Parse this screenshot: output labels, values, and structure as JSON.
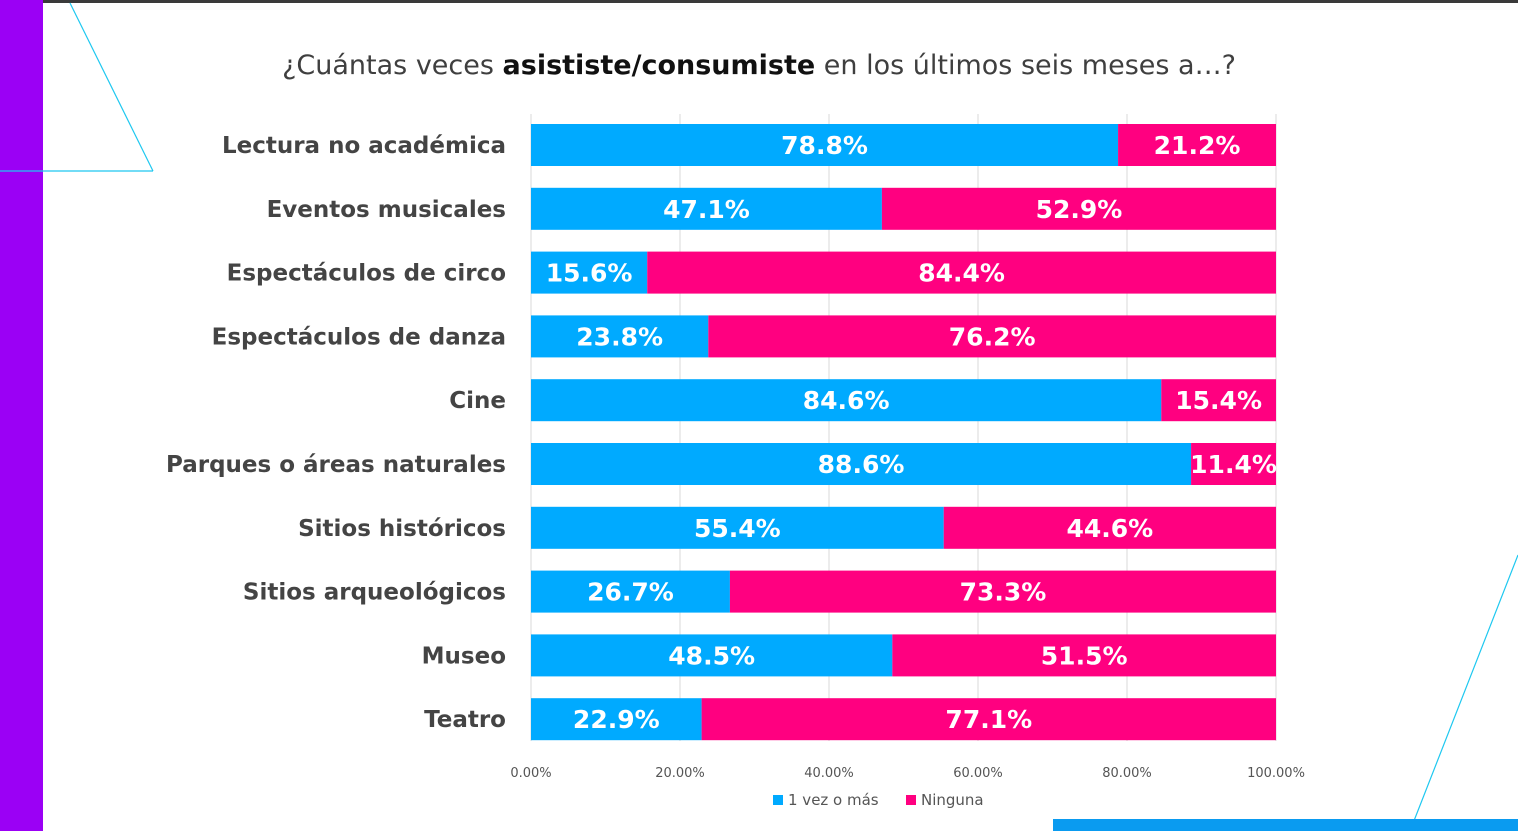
{
  "title": {
    "prefix": "¿Cuántas veces ",
    "bold": "asististe/consumiste",
    "suffix": " en los últimos seis meses a…?"
  },
  "colors": {
    "series1": "#00aaff",
    "series2": "#ff0080",
    "left_bar": "#9b00f5",
    "accent_line": "#1ec8f0",
    "bottom_bar": "#0a9bf0"
  },
  "chart_data": {
    "type": "bar",
    "orientation": "horizontal",
    "stacked": true,
    "categories": [
      "Lectura no académica",
      "Eventos musicales",
      "Espectáculos de circo",
      "Espectáculos de danza",
      "Cine",
      "Parques o áreas naturales",
      "Sitios históricos",
      "Sitios arqueológicos",
      "Museo",
      "Teatro"
    ],
    "series": [
      {
        "name": "1 vez o más",
        "values": [
          78.8,
          47.1,
          15.6,
          23.8,
          84.6,
          88.6,
          55.4,
          26.7,
          48.5,
          22.9
        ],
        "labels": [
          "78.8%",
          "47.1%",
          "15.6%",
          "23.8%",
          "84.6%",
          "88.6%",
          "55.4%",
          "26.7%",
          "48.5%",
          "22.9%"
        ]
      },
      {
        "name": "Ninguna",
        "values": [
          21.2,
          52.9,
          84.4,
          76.2,
          15.4,
          11.4,
          44.6,
          73.3,
          51.5,
          77.1
        ],
        "labels": [
          "21.2%",
          "52.9%",
          "84.4%",
          "76.2%",
          "15.4%",
          "11.4%",
          "44.6%",
          "73.3%",
          "51.5%",
          "77.1%"
        ]
      }
    ],
    "xlim": [
      0,
      100
    ],
    "xticks": [
      0,
      20,
      40,
      60,
      80,
      100
    ],
    "xtick_labels": [
      "0.00%",
      "20.00%",
      "40.00%",
      "60.00%",
      "80.00%",
      "100.00%"
    ],
    "grid": true,
    "legend": "bottom"
  }
}
